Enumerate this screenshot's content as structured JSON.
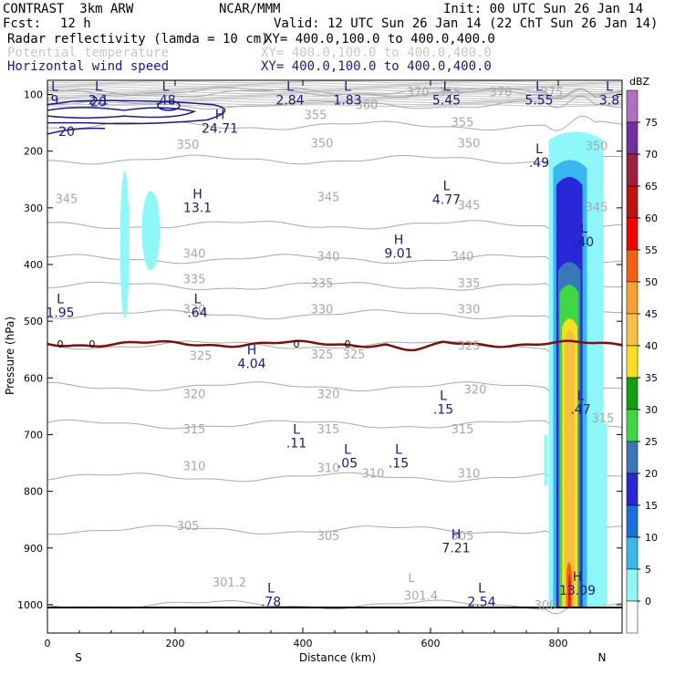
{
  "header": {
    "model": "CONTRAST  3km ARW",
    "center": "NCAR/MMM",
    "init": "Init: 00 UTC Sun 26 Jan 14",
    "fcst_label": "Fcst:",
    "fcst_value": "12 h",
    "valid": "Valid: 12 UTC Sun 26 Jan 14 (22 ChT Sun 26 Jan 14)",
    "fields": [
      {
        "name": "Radar reflectivity (lamda = 10 cm)",
        "xy": "XY= 400.0,100.0 to 400.0,400.0",
        "color": "#000000"
      },
      {
        "name": "Potential temperature",
        "xy": "XY= 400.0,100.0 to 400.0,400.0",
        "color": "#c8c8c8"
      },
      {
        "name": "Horizontal wind speed",
        "xy": "XY= 400.0,100.0 to 400.0,400.0",
        "color": "#1a1a80"
      }
    ]
  },
  "chart_data": {
    "type": "cross-section",
    "xlabel": "Distance (km)",
    "ylabel": "Pressure (hPa)",
    "xlim": [
      0,
      900
    ],
    "ylim": [
      1050,
      75
    ],
    "x_ticks": [
      0,
      200,
      400,
      600,
      800
    ],
    "y_ticks": [
      100,
      200,
      300,
      400,
      500,
      600,
      700,
      800,
      900,
      1000
    ],
    "x_end_labels": {
      "left": "S",
      "right": "N"
    },
    "colorbar": {
      "unit": "dBZ",
      "levels": [
        0,
        5,
        10,
        15,
        20,
        25,
        30,
        35,
        40,
        45,
        50,
        55,
        60,
        65,
        70,
        75
      ],
      "colors": [
        "#ffffff",
        "#8ef8f8",
        "#38b8f0",
        "#1870e0",
        "#2828d8",
        "#3878b8",
        "#40d840",
        "#10a010",
        "#f8e020",
        "#f8c040",
        "#f8a030",
        "#f86010",
        "#f80000",
        "#c01010",
        "#a02040",
        "#7030a0",
        "#b070c0"
      ]
    },
    "theta_contours": {
      "color": "#a8a8a8",
      "lines": [
        {
          "level": 300,
          "p": 1000
        },
        {
          "level": 305,
          "p": 868
        },
        {
          "level": 310,
          "p": 775
        },
        {
          "level": 315,
          "p": 682
        },
        {
          "level": 320,
          "p": 615
        },
        {
          "level": 325,
          "p": 542
        },
        {
          "level": 330,
          "p": 488
        },
        {
          "level": 335,
          "p": 438
        },
        {
          "level": 340,
          "p": 390
        },
        {
          "level": 345,
          "p": 330
        },
        {
          "level": 350,
          "p": 215
        },
        {
          "level": 355,
          "p": 155
        },
        {
          "level": 360,
          "p": 118
        },
        {
          "level": 370,
          "p": 97
        },
        {
          "level": 375,
          "p": 95
        }
      ],
      "labels": [
        {
          "text": "360",
          "x": 500,
          "p": 118
        },
        {
          "text": "355",
          "x": 420,
          "p": 135
        },
        {
          "text": "355",
          "x": 650,
          "p": 148
        },
        {
          "text": "370",
          "x": 580,
          "p": 95
        },
        {
          "text": "355",
          "x": 630,
          "p": 95
        },
        {
          "text": "370",
          "x": 710,
          "p": 95
        },
        {
          "text": "375",
          "x": 790,
          "p": 95
        },
        {
          "text": "350",
          "x": 220,
          "p": 188
        },
        {
          "text": "350",
          "x": 430,
          "p": 185
        },
        {
          "text": "350",
          "x": 660,
          "p": 185
        },
        {
          "text": "350",
          "x": 860,
          "p": 190
        },
        {
          "text": "345",
          "x": 30,
          "p": 283
        },
        {
          "text": "345",
          "x": 440,
          "p": 280
        },
        {
          "text": "345",
          "x": 660,
          "p": 295
        },
        {
          "text": "345",
          "x": 860,
          "p": 298
        },
        {
          "text": "340",
          "x": 230,
          "p": 380
        },
        {
          "text": "340",
          "x": 440,
          "p": 385
        },
        {
          "text": "340",
          "x": 650,
          "p": 385
        },
        {
          "text": "335",
          "x": 230,
          "p": 425
        },
        {
          "text": "335",
          "x": 430,
          "p": 432
        },
        {
          "text": "335",
          "x": 660,
          "p": 432
        },
        {
          "text": "330",
          "x": 230,
          "p": 478
        },
        {
          "text": "330",
          "x": 430,
          "p": 478
        },
        {
          "text": "330",
          "x": 660,
          "p": 478
        },
        {
          "text": "325",
          "x": 240,
          "p": 560
        },
        {
          "text": "325",
          "x": 430,
          "p": 558
        },
        {
          "text": "325",
          "x": 480,
          "p": 558
        },
        {
          "text": "325",
          "x": 660,
          "p": 542
        },
        {
          "text": "320",
          "x": 230,
          "p": 628
        },
        {
          "text": "320",
          "x": 440,
          "p": 628
        },
        {
          "text": "320",
          "x": 670,
          "p": 620
        },
        {
          "text": "315",
          "x": 230,
          "p": 690
        },
        {
          "text": "315",
          "x": 440,
          "p": 690
        },
        {
          "text": "315",
          "x": 650,
          "p": 690
        },
        {
          "text": "315",
          "x": 870,
          "p": 670
        },
        {
          "text": "310",
          "x": 230,
          "p": 755
        },
        {
          "text": "310",
          "x": 440,
          "p": 758
        },
        {
          "text": "310",
          "x": 510,
          "p": 768
        },
        {
          "text": "310",
          "x": 660,
          "p": 768
        },
        {
          "text": "305",
          "x": 220,
          "p": 860
        },
        {
          "text": "305",
          "x": 440,
          "p": 878
        },
        {
          "text": "305",
          "x": 650,
          "p": 878
        },
        {
          "text": "300",
          "x": 780,
          "p": 1000
        },
        {
          "text": "301.2",
          "x": 285,
          "p": 960
        },
        {
          "text": "301.4",
          "x": 585,
          "p": 983
        },
        {
          "text": "L",
          "x": 570,
          "p": 952
        }
      ]
    },
    "wind_speed_extrema": {
      "color": "#1a1a80",
      "items": [
        {
          "type": "L",
          "value": "2.1",
          "x": 80,
          "p": 100
        },
        {
          "type": "L",
          "value": ".48",
          "x": 185,
          "p": 100
        },
        {
          "type": "L",
          "value": "2.84",
          "x": 380,
          "p": 100
        },
        {
          "type": "L",
          "value": "1.83",
          "x": 470,
          "p": 100
        },
        {
          "type": "L",
          "value": "5.45",
          "x": 625,
          "p": 100
        },
        {
          "type": "L",
          "value": "5.55",
          "x": 770,
          "p": 100
        },
        {
          "type": "L",
          "value": "3.8",
          "x": 880,
          "p": 100
        },
        {
          "type": "L",
          "value": "9",
          "x": 8,
          "p": 100
        },
        {
          "type": "H",
          "value": "24.71",
          "x": 270,
          "p": 150
        },
        {
          "type": "L",
          "value": ".49",
          "x": 770,
          "p": 210
        },
        {
          "type": "H",
          "value": "13.1",
          "x": 235,
          "p": 290
        },
        {
          "type": "L",
          "value": "4.77",
          "x": 625,
          "p": 275
        },
        {
          "type": "L",
          "value": ".40",
          "x": 840,
          "p": 350
        },
        {
          "type": "H",
          "value": "9.01",
          "x": 550,
          "p": 370
        },
        {
          "type": "L",
          "value": "1.95",
          "x": 20,
          "p": 475
        },
        {
          "type": "L",
          "value": ".64",
          "x": 235,
          "p": 475
        },
        {
          "type": "H",
          "value": "4.04",
          "x": 320,
          "p": 565
        },
        {
          "type": "L",
          "value": ".15",
          "x": 620,
          "p": 645
        },
        {
          "type": "L",
          "value": ".47",
          "x": 835,
          "p": 645
        },
        {
          "type": "L",
          "value": ".11",
          "x": 390,
          "p": 705
        },
        {
          "type": "L",
          "value": ".05",
          "x": 470,
          "p": 740
        },
        {
          "type": "L",
          "value": ".15",
          "x": 550,
          "p": 740
        },
        {
          "type": "H",
          "value": "7.21",
          "x": 640,
          "p": 890
        },
        {
          "type": "H",
          "value": "13.09",
          "x": 830,
          "p": 965
        },
        {
          "type": "L",
          "value": ".78",
          "x": 350,
          "p": 985
        },
        {
          "type": "L",
          "value": "2.54",
          "x": 680,
          "p": 985
        }
      ],
      "contour_labels": [
        {
          "text": "20",
          "x": 30,
          "p": 165
        },
        {
          "text": "20",
          "x": 80,
          "p": 113
        }
      ]
    },
    "zero_line": {
      "label": "0",
      "color": "#7a1010",
      "p_mean": 540
    },
    "surface_pressure": 1005
  }
}
